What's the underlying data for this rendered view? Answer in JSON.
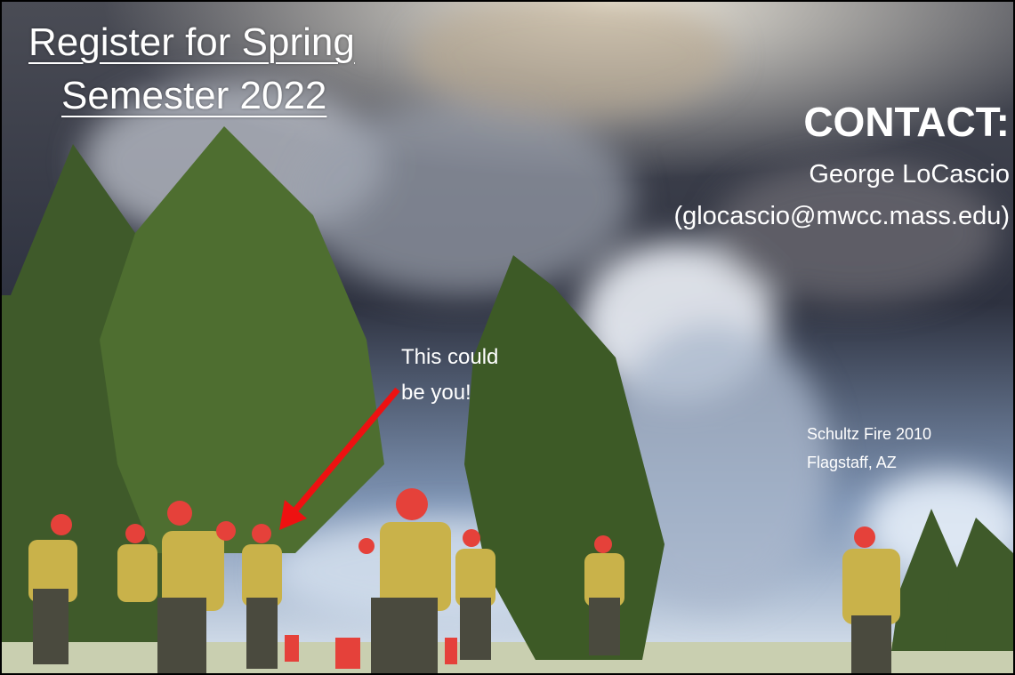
{
  "title": {
    "line1": "Register for Spring",
    "line2": "Semester 2022"
  },
  "contact": {
    "heading": "CONTACT:",
    "name": "George LoCascio",
    "email": "(glocascio@mwcc.mass.edu)"
  },
  "callout": {
    "line1": "This could",
    "line2": "be you!"
  },
  "caption": {
    "line1": "Schultz Fire 2010",
    "line2": "Flagstaff, AZ"
  }
}
